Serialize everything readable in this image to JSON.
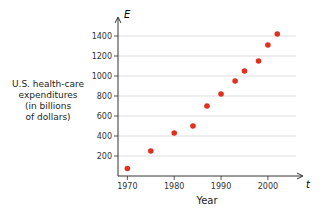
{
  "chart_data": {
    "type": "scatter",
    "xlabel": "Year",
    "ylabel": "U.S. health-care\nexpenditures\n(in billions\nof dollars)",
    "annotations": [
      "E",
      "t"
    ],
    "x": [
      1970,
      1975,
      1980,
      1984,
      1987,
      1990,
      1993,
      1995,
      1998,
      2000,
      2002
    ],
    "values": [
      75,
      250,
      430,
      500,
      700,
      820,
      950,
      1050,
      1150,
      1310,
      1420
    ],
    "color": "#e03020",
    "xlim": [
      1968,
      2006
    ],
    "ylim": [
      0,
      1520
    ],
    "xticks": [
      1970,
      1980,
      1990,
      2000
    ],
    "yticks": [
      200,
      400,
      600,
      800,
      1000,
      1200,
      1400
    ],
    "grid": "y"
  }
}
